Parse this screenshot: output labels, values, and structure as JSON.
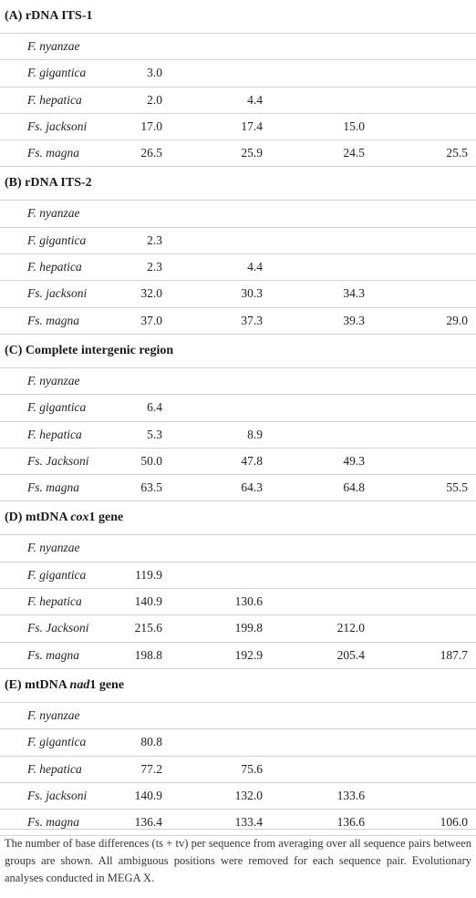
{
  "sections": [
    {
      "title_parts": [
        {
          "text": "(A) rDNA ITS-1",
          "italic": false
        }
      ],
      "rows": [
        {
          "species": "F. nyanzae",
          "values": [
            "",
            "",
            "",
            ""
          ]
        },
        {
          "species": "F. gigantica",
          "values": [
            "3.0",
            "",
            "",
            ""
          ]
        },
        {
          "species": "F. hepatica",
          "values": [
            "2.0",
            "4.4",
            "",
            ""
          ]
        },
        {
          "species": "Fs. jacksoni",
          "values": [
            "17.0",
            "17.4",
            "15.0",
            ""
          ]
        },
        {
          "species": "Fs. magna",
          "values": [
            "26.5",
            "25.9",
            "24.5",
            "25.5"
          ]
        }
      ]
    },
    {
      "title_parts": [
        {
          "text": "(B) rDNA ITS-2",
          "italic": false
        }
      ],
      "rows": [
        {
          "species": "F. nyanzae",
          "values": [
            "",
            "",
            "",
            ""
          ]
        },
        {
          "species": "F. gigantica",
          "values": [
            "2.3",
            "",
            "",
            ""
          ]
        },
        {
          "species": "F. hepatica",
          "values": [
            "2.3",
            "4.4",
            "",
            ""
          ]
        },
        {
          "species": "Fs. jacksoni",
          "values": [
            "32.0",
            "30.3",
            "34.3",
            ""
          ]
        },
        {
          "species": "Fs. magna",
          "values": [
            "37.0",
            "37.3",
            "39.3",
            "29.0"
          ]
        }
      ]
    },
    {
      "title_parts": [
        {
          "text": "(C) Complete intergenic region",
          "italic": false
        }
      ],
      "rows": [
        {
          "species": "F. nyanzae",
          "values": [
            "",
            "",
            "",
            ""
          ]
        },
        {
          "species": "F. gigantica",
          "values": [
            "6.4",
            "",
            "",
            ""
          ]
        },
        {
          "species": "F. hepatica",
          "values": [
            "5.3",
            "8.9",
            "",
            ""
          ]
        },
        {
          "species": "Fs. Jacksoni",
          "values": [
            "50.0",
            "47.8",
            "49.3",
            ""
          ]
        },
        {
          "species": "Fs. magna",
          "values": [
            "63.5",
            "64.3",
            "64.8",
            "55.5"
          ]
        }
      ]
    },
    {
      "title_parts": [
        {
          "text": "(D) mtDNA ",
          "italic": false
        },
        {
          "text": "cox",
          "italic": true
        },
        {
          "text": "1 gene",
          "italic": false
        }
      ],
      "rows": [
        {
          "species": "F. nyanzae",
          "values": [
            "",
            "",
            "",
            ""
          ]
        },
        {
          "species": "F. gigantica",
          "values": [
            "119.9",
            "",
            "",
            ""
          ]
        },
        {
          "species": "F. hepatica",
          "values": [
            "140.9",
            "130.6",
            "",
            ""
          ]
        },
        {
          "species": "Fs. Jacksoni",
          "values": [
            "215.6",
            "199.8",
            "212.0",
            ""
          ]
        },
        {
          "species": "Fs. magna",
          "values": [
            "198.8",
            "192.9",
            "205.4",
            "187.7"
          ]
        }
      ]
    },
    {
      "title_parts": [
        {
          "text": "(E) mtDNA ",
          "italic": false
        },
        {
          "text": "nad",
          "italic": true
        },
        {
          "text": "1 gene",
          "italic": false
        }
      ],
      "rows": [
        {
          "species": "F. nyanzae",
          "values": [
            "",
            "",
            "",
            ""
          ]
        },
        {
          "species": "F. gigantica",
          "values": [
            "80.8",
            "",
            "",
            ""
          ]
        },
        {
          "species": "F. hepatica",
          "values": [
            "77.2",
            "75.6",
            "",
            ""
          ]
        },
        {
          "species": "Fs. jacksoni",
          "values": [
            "140.9",
            "132.0",
            "133.6",
            ""
          ]
        },
        {
          "species": "Fs. magna",
          "values": [
            "136.4",
            "133.4",
            "136.6",
            "106.0"
          ]
        }
      ]
    }
  ],
  "footnote": "The number of base differences (ts + tv) per sequence from averaging over all sequence pairs between groups are shown. All ambiguous positions were removed for each sequence pair. Evolutionary analyses conducted in MEGA X."
}
